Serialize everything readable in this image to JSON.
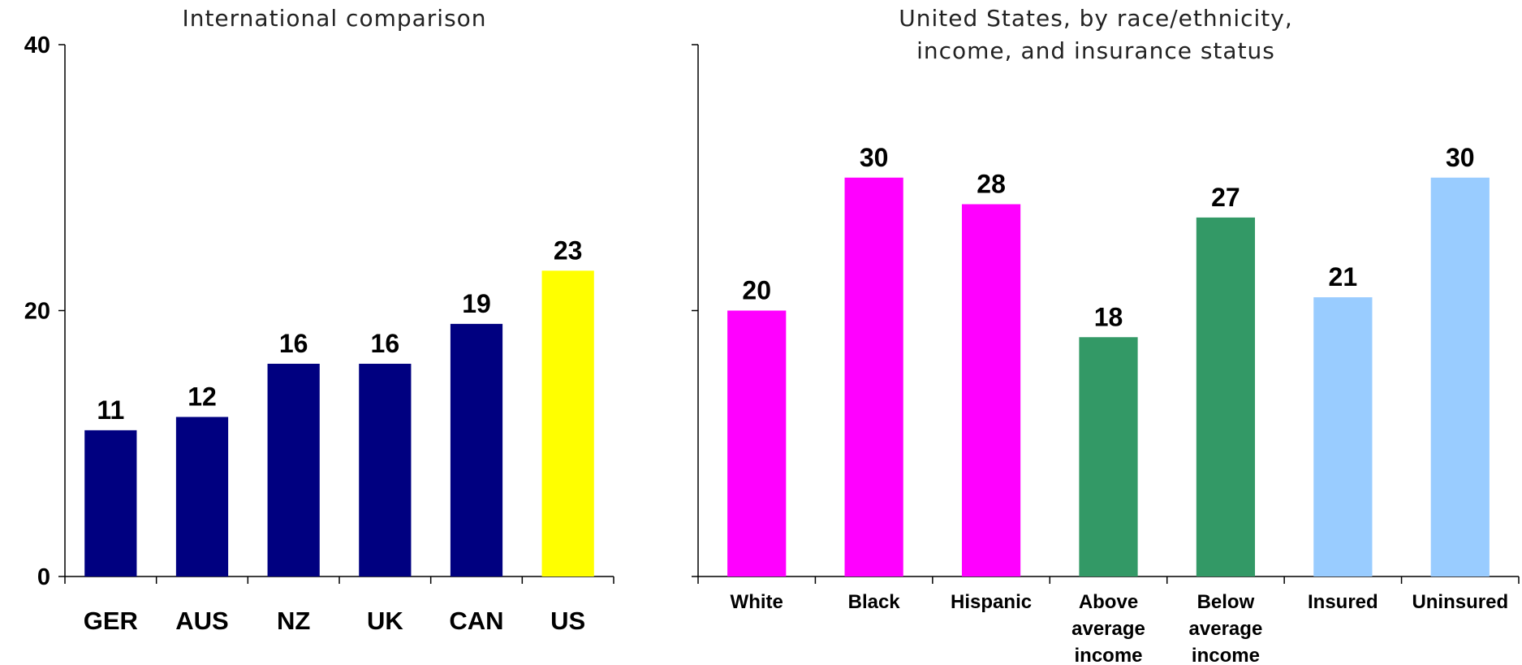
{
  "chart_data": [
    {
      "type": "bar",
      "title": "International comparison",
      "categories": [
        "GER",
        "AUS",
        "NZ",
        "UK",
        "CAN",
        "US"
      ],
      "values": [
        11,
        12,
        16,
        16,
        19,
        23
      ],
      "colors": [
        "#000080",
        "#000080",
        "#000080",
        "#000080",
        "#000080",
        "#ffff00"
      ],
      "data_labels": [
        "11",
        "12",
        "16",
        "16",
        "19",
        "23"
      ],
      "ylim": [
        0,
        40
      ],
      "yticks": [
        "0",
        "20",
        "40"
      ],
      "grid": false
    },
    {
      "type": "bar",
      "title": "United States, by race/ethnicity, income, and insurance status",
      "title_lines": [
        "United States, by race/ethnicity,",
        "income, and insurance status"
      ],
      "categories": [
        "White",
        "Black",
        "Hispanic",
        "Above average income",
        "Below average income",
        "Insured",
        "Uninsured"
      ],
      "category_lines": [
        [
          "White"
        ],
        [
          "Black"
        ],
        [
          "Hispanic"
        ],
        [
          "Above",
          "average",
          "income"
        ],
        [
          "Below",
          "average",
          "income"
        ],
        [
          "Insured"
        ],
        [
          "Uninsured"
        ]
      ],
      "values": [
        20,
        30,
        28,
        18,
        27,
        21,
        30
      ],
      "colors": [
        "#ff00ff",
        "#ff00ff",
        "#ff00ff",
        "#339966",
        "#339966",
        "#99ccff",
        "#99ccff"
      ],
      "data_labels": [
        "20",
        "30",
        "28",
        "18",
        "27",
        "21",
        "30"
      ],
      "ylim": [
        0,
        40
      ],
      "grid": false
    }
  ]
}
